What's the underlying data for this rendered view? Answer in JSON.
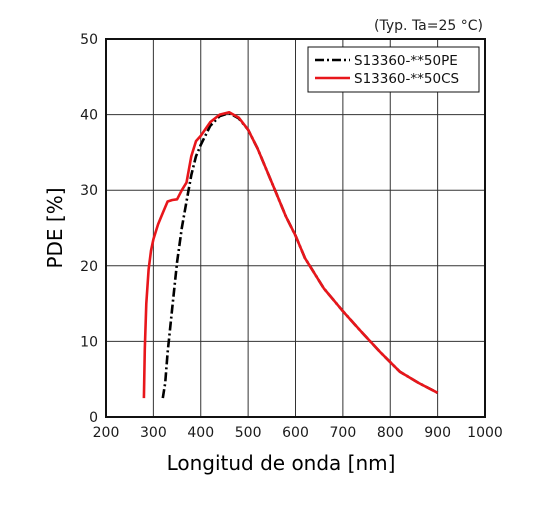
{
  "chart_data": {
    "type": "line",
    "annotation": "(Typ. Ta=25 °C)",
    "xlabel": "Longitud de onda [nm]",
    "ylabel": "PDE [%]",
    "xlim": [
      200,
      1000
    ],
    "ylim": [
      0,
      50
    ],
    "xticks": [
      200,
      300,
      400,
      500,
      600,
      700,
      800,
      900,
      1000
    ],
    "yticks": [
      0,
      10,
      20,
      30,
      40,
      50
    ],
    "grid": true,
    "legend_position": "top-right",
    "series": [
      {
        "name": "S13360-**50PE",
        "color": "#000000",
        "style": "dash-dot",
        "x": [
          320,
          325,
          330,
          340,
          350,
          360,
          370,
          380,
          390,
          400,
          420,
          440,
          460,
          480,
          500,
          520,
          540,
          560,
          580,
          600,
          620,
          640,
          660,
          680,
          700,
          740,
          780,
          820,
          860,
          900
        ],
        "y": [
          2.5,
          4.5,
          8.5,
          14.5,
          20.5,
          25,
          28.5,
          32,
          34.5,
          36,
          38.5,
          39.8,
          40.2,
          39.5,
          38,
          35.5,
          32.5,
          29.5,
          26.5,
          24,
          21,
          19,
          17,
          15.5,
          14,
          11.2,
          8.5,
          6,
          4.5,
          3.2
        ]
      },
      {
        "name": "S13360-**50CS",
        "color": "#e8161b",
        "style": "solid",
        "x": [
          280,
          282,
          285,
          290,
          295,
          300,
          310,
          320,
          330,
          340,
          350,
          360,
          370,
          380,
          390,
          400,
          420,
          440,
          460,
          480,
          500,
          520,
          540,
          560,
          580,
          600,
          620,
          640,
          660,
          680,
          700,
          740,
          780,
          820,
          860,
          900
        ],
        "y": [
          2.5,
          9,
          15,
          19.5,
          22,
          23.5,
          25.5,
          27,
          28.5,
          28.7,
          28.8,
          30,
          31,
          34.5,
          36.5,
          37.2,
          39,
          40,
          40.3,
          39.6,
          38,
          35.5,
          32.5,
          29.5,
          26.5,
          24,
          21,
          19,
          17,
          15.5,
          14,
          11.2,
          8.5,
          6,
          4.5,
          3.2
        ]
      }
    ]
  }
}
